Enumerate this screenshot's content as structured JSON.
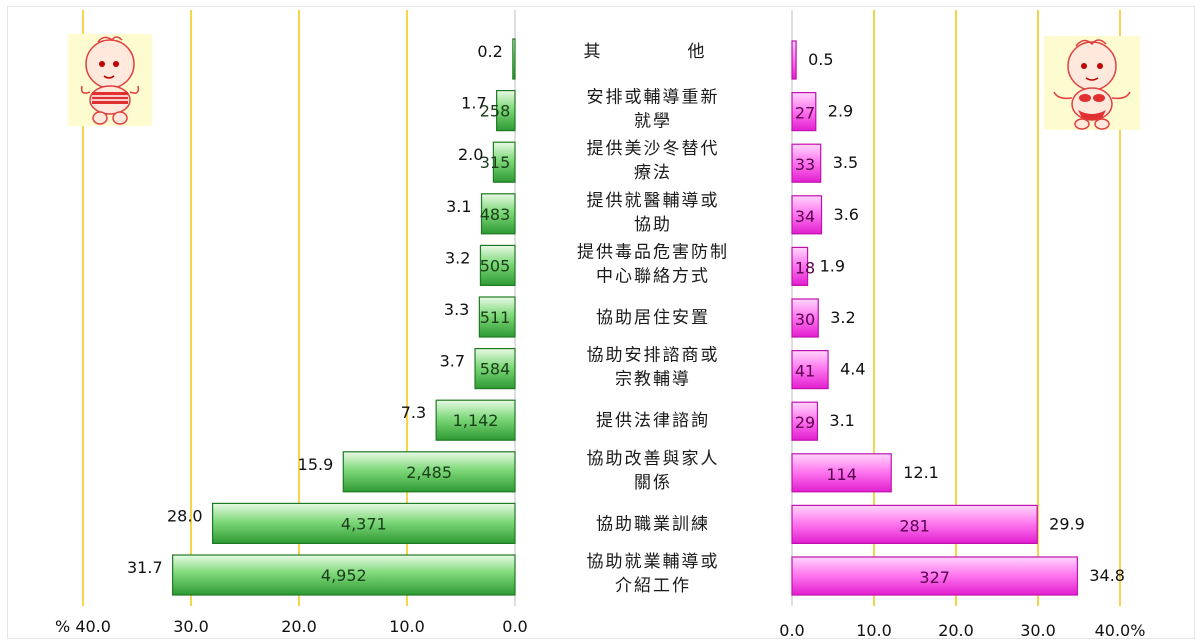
{
  "chart_data": {
    "type": "bar",
    "orientation": "horizontal",
    "layout": "population-pyramid",
    "categories": [
      [
        "其",
        "他"
      ],
      [
        "安排或輔導重新",
        "就學"
      ],
      [
        "提供美沙冬替代",
        "療法"
      ],
      [
        "提供就醫輔導或",
        "協助"
      ],
      [
        "提供毒品危害防制",
        "中心聯絡方式"
      ],
      [
        "協助居住安置"
      ],
      [
        "協助安排諮商或",
        "宗教輔導"
      ],
      [
        "提供法律諮詢"
      ],
      [
        "協助改善與家人",
        "關係"
      ],
      [
        "協助職業訓練"
      ],
      [
        "協助就業輔導或",
        "介紹工作"
      ]
    ],
    "series": [
      {
        "side": "left",
        "color": "#3cb043",
        "percent": [
          0.2,
          1.7,
          2.0,
          3.1,
          3.2,
          3.3,
          3.7,
          7.3,
          15.9,
          28.0,
          31.7
        ],
        "percent_labels": [
          "0.2",
          "1.7",
          "2.0",
          "3.1",
          "3.2",
          "3.3",
          "3.7",
          "7.3",
          "15.9",
          "28.0",
          "31.7"
        ],
        "counts": [
          "",
          "258",
          "315",
          "483",
          "505",
          "511",
          "584",
          "1,142",
          "2,485",
          "4,371",
          "4,952"
        ]
      },
      {
        "side": "right",
        "color": "#ff3fe0",
        "percent": [
          0.5,
          2.9,
          3.5,
          3.6,
          1.9,
          3.2,
          4.4,
          3.1,
          12.1,
          29.9,
          34.8
        ],
        "percent_labels": [
          "0.5",
          "2.9",
          "3.5",
          "3.6",
          "1.9",
          "3.2",
          "4.4",
          "3.1",
          "12.1",
          "29.9",
          "34.8"
        ],
        "counts": [
          "",
          "27",
          "33",
          "34",
          "18",
          "30",
          "41",
          "29",
          "114",
          "281",
          "327"
        ]
      }
    ],
    "left_axis": {
      "range": [
        0,
        40
      ],
      "ticks": [
        "% 40.0",
        "30.0",
        "20.0",
        "10.0",
        "0.0"
      ]
    },
    "right_axis": {
      "range": [
        0,
        40
      ],
      "ticks": [
        "0.0",
        "10.0",
        "20.0",
        "30.0",
        "40.0%"
      ]
    },
    "grid": true,
    "grid_color": "#f2c200"
  },
  "icons": {
    "left": "baby-boy-icon",
    "right": "baby-girl-icon"
  }
}
